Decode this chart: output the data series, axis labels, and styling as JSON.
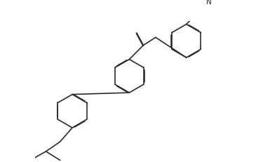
{
  "background_color": "#ffffff",
  "line_color": "#2a2a2a",
  "line_width": 1.2,
  "dbo": 0.012,
  "fig_width": 3.75,
  "fig_height": 2.31,
  "dpi": 100,
  "xlim": [
    -2.2,
    2.2
  ],
  "ylim": [
    -1.6,
    1.6
  ],
  "R1": [
    -1.35,
    -0.45
  ],
  "R2": [
    -0.05,
    0.35
  ],
  "R3": [
    1.25,
    1.15
  ],
  "r_ring": 0.38
}
